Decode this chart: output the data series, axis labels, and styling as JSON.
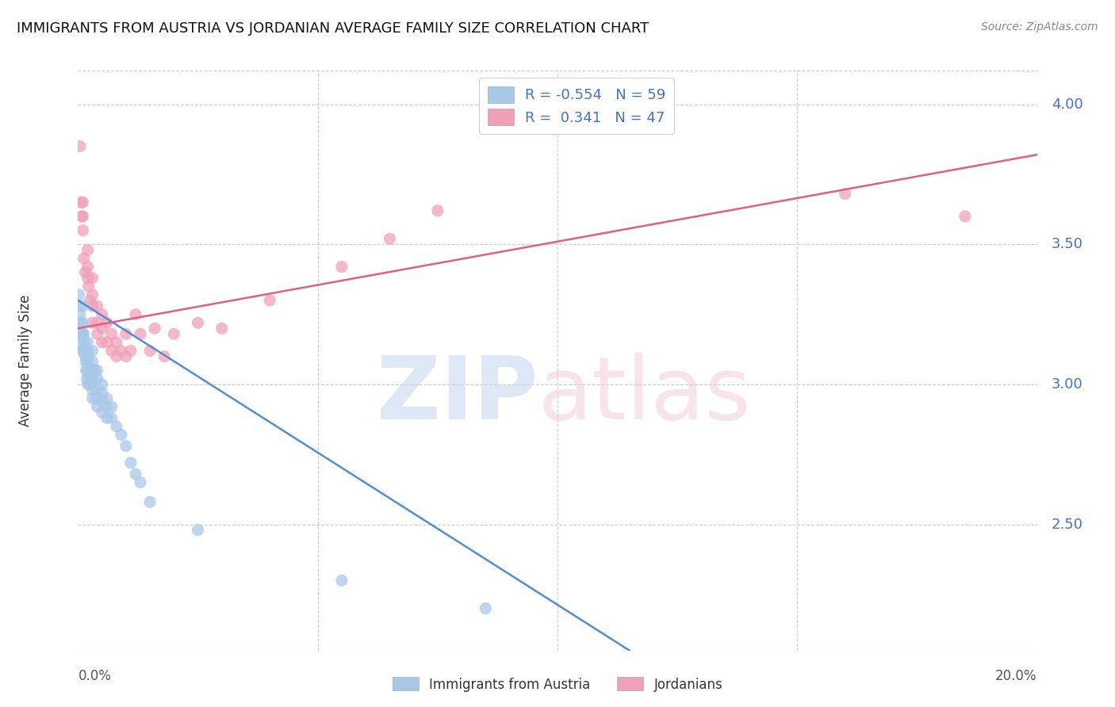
{
  "title": "IMMIGRANTS FROM AUSTRIA VS JORDANIAN AVERAGE FAMILY SIZE CORRELATION CHART",
  "source": "Source: ZipAtlas.com",
  "ylabel": "Average Family Size",
  "right_yticks": [
    2.5,
    3.0,
    3.5,
    4.0
  ],
  "blue_R": -0.554,
  "blue_N": 59,
  "pink_R": 0.341,
  "pink_N": 47,
  "blue_color": "#a8c8e8",
  "pink_color": "#f0a0b8",
  "blue_line_color": "#5090d0",
  "pink_line_color": "#e06080",
  "xmin": 0.0,
  "xmax": 0.2,
  "ymin": 2.05,
  "ymax": 4.12,
  "blue_scatter_x": [
    0.0002,
    0.0003,
    0.0004,
    0.0005,
    0.0006,
    0.0007,
    0.0008,
    0.0009,
    0.001,
    0.001,
    0.001,
    0.001,
    0.0012,
    0.0013,
    0.0014,
    0.0015,
    0.0016,
    0.0017,
    0.0018,
    0.002,
    0.002,
    0.002,
    0.002,
    0.002,
    0.0022,
    0.0023,
    0.0024,
    0.0025,
    0.003,
    0.003,
    0.003,
    0.003,
    0.003,
    0.003,
    0.0035,
    0.004,
    0.004,
    0.004,
    0.004,
    0.004,
    0.005,
    0.005,
    0.005,
    0.005,
    0.006,
    0.006,
    0.006,
    0.007,
    0.007,
    0.008,
    0.009,
    0.01,
    0.011,
    0.012,
    0.013,
    0.015,
    0.025,
    0.055,
    0.085
  ],
  "blue_scatter_y": [
    3.32,
    3.28,
    3.25,
    3.22,
    3.2,
    3.18,
    3.15,
    3.12,
    3.28,
    3.22,
    3.18,
    3.12,
    3.18,
    3.15,
    3.12,
    3.1,
    3.08,
    3.05,
    3.02,
    3.15,
    3.12,
    3.08,
    3.05,
    3.0,
    3.1,
    3.06,
    3.03,
    3.0,
    3.12,
    3.08,
    3.05,
    3.02,
    2.98,
    2.95,
    3.05,
    3.05,
    3.02,
    2.98,
    2.95,
    2.92,
    3.0,
    2.97,
    2.94,
    2.9,
    2.95,
    2.92,
    2.88,
    2.92,
    2.88,
    2.85,
    2.82,
    2.78,
    2.72,
    2.68,
    2.65,
    2.58,
    2.48,
    2.3,
    2.2
  ],
  "pink_scatter_x": [
    0.0004,
    0.0006,
    0.0008,
    0.001,
    0.001,
    0.001,
    0.0012,
    0.0015,
    0.002,
    0.002,
    0.002,
    0.0022,
    0.0025,
    0.003,
    0.003,
    0.003,
    0.003,
    0.004,
    0.004,
    0.004,
    0.005,
    0.005,
    0.005,
    0.006,
    0.006,
    0.007,
    0.007,
    0.008,
    0.008,
    0.009,
    0.01,
    0.01,
    0.011,
    0.012,
    0.013,
    0.015,
    0.016,
    0.018,
    0.02,
    0.025,
    0.03,
    0.04,
    0.055,
    0.065,
    0.075,
    0.16,
    0.185
  ],
  "pink_scatter_y": [
    3.85,
    3.65,
    3.6,
    3.65,
    3.6,
    3.55,
    3.45,
    3.4,
    3.48,
    3.42,
    3.38,
    3.35,
    3.3,
    3.38,
    3.32,
    3.28,
    3.22,
    3.28,
    3.22,
    3.18,
    3.25,
    3.2,
    3.15,
    3.22,
    3.15,
    3.18,
    3.12,
    3.15,
    3.1,
    3.12,
    3.18,
    3.1,
    3.12,
    3.25,
    3.18,
    3.12,
    3.2,
    3.1,
    3.18,
    3.22,
    3.2,
    3.3,
    3.42,
    3.52,
    3.62,
    3.68,
    3.6
  ],
  "blue_line_x0": 0.0,
  "blue_line_y0": 3.3,
  "blue_line_x1": 0.115,
  "blue_line_y1": 2.05,
  "pink_line_x0": 0.0,
  "pink_line_y0": 3.2,
  "pink_line_x1": 0.2,
  "pink_line_y1": 3.82
}
